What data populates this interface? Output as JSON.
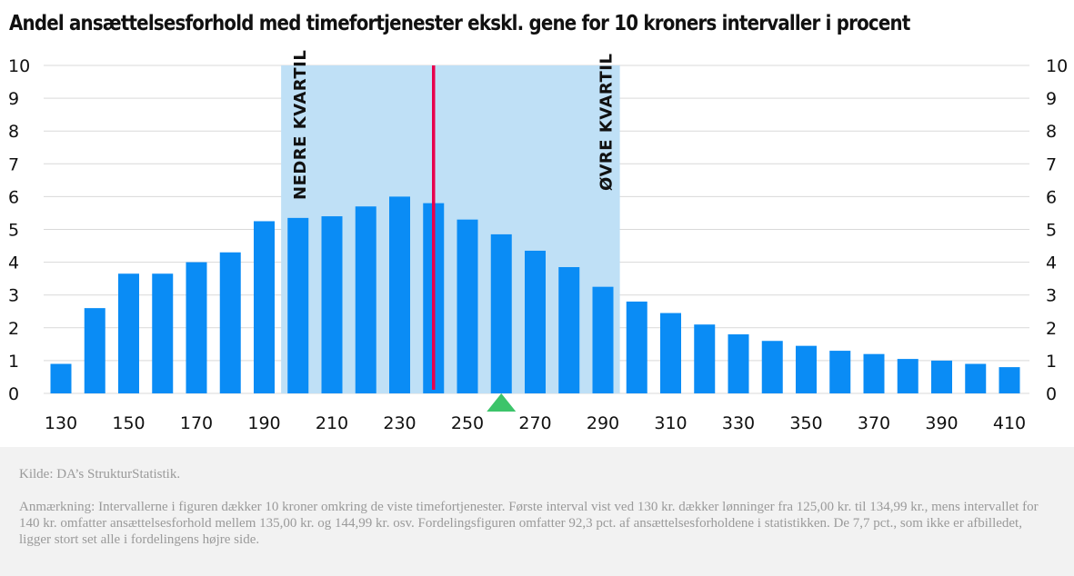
{
  "title": "Andel ansættelsesforhold med timefortjenester ekskl. gene for 10 kroners intervaller i procent",
  "footer": {
    "source": "Kilde: DA’s StrukturStatistik.",
    "note": "Anmærkning: Intervallerne i figuren dækker 10 kroner omkring de viste timefortjenester. Første interval vist ved 130 kr. dækker lønninger fra 125,00 kr. til 134,99 kr., mens intervallet for 140 kr. omfatter ansættelsesforhold mellem 135,00 kr. og 144,99 kr. osv. Fordelingsfiguren omfatter 92,3 pct. af ansættelsesforholdene i statistikken. De 7,7 pct., som ikke er afbilledet, ligger stort set alle i fordelingens højre side."
  },
  "colors": {
    "bar": "#0a8cf5",
    "quartile_band": "#bfe0f6",
    "median_line": "#e8004c",
    "marker": "#3cc46a",
    "grid": "#d9d9d9"
  },
  "chart_data": {
    "type": "bar",
    "categories": [
      130,
      140,
      150,
      160,
      170,
      180,
      190,
      200,
      210,
      220,
      230,
      240,
      250,
      260,
      270,
      280,
      290,
      300,
      310,
      320,
      330,
      340,
      350,
      360,
      370,
      380,
      390,
      400,
      410
    ],
    "values": [
      0.9,
      2.6,
      3.65,
      3.65,
      4.0,
      4.3,
      5.25,
      5.35,
      5.4,
      5.7,
      6.0,
      5.8,
      5.3,
      4.85,
      4.35,
      3.85,
      3.25,
      2.8,
      2.45,
      2.1,
      1.8,
      1.6,
      1.45,
      1.3,
      1.2,
      1.05,
      1.0,
      0.9,
      0.8
    ],
    "x_tick_labels": [
      "130",
      "150",
      "170",
      "190",
      "210",
      "230",
      "250",
      "270",
      "290",
      "310",
      "330",
      "350",
      "370",
      "390",
      "410"
    ],
    "y_tick_labels": [
      "0",
      "1",
      "2",
      "3",
      "4",
      "5",
      "6",
      "7",
      "8",
      "9",
      "10"
    ],
    "ylim": [
      0,
      10
    ],
    "grid": true,
    "y_axis_both_sides": true,
    "quartile_band": {
      "from": 200,
      "to": 290
    },
    "quartile_labels": {
      "lower": "NEDRE KVARTIL",
      "upper": "ØVRE KVARTIL"
    },
    "median_line_x": 240,
    "marker_x": 260
  }
}
